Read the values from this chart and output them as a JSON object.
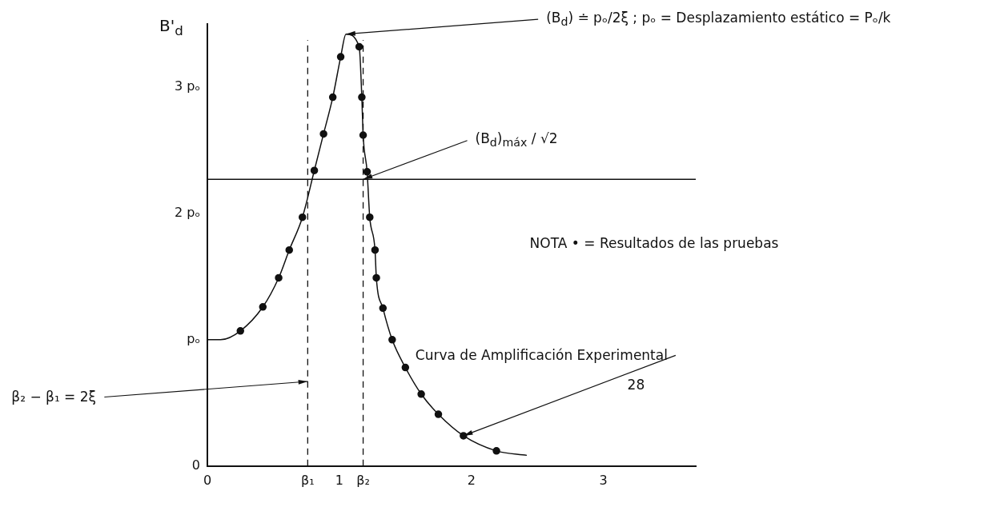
{
  "chart_data": {
    "type": "scatter",
    "ylabel": "B'$_{d}$",
    "xlim": [
      0,
      3.7
    ],
    "ylim": [
      0,
      3.5
    ],
    "xticks": [
      0,
      {
        "value": 0.76,
        "label": "β₁"
      },
      1,
      {
        "value": 1.18,
        "label": "β₂"
      },
      2,
      3
    ],
    "yticks": [
      0,
      {
        "value": 1,
        "label": "pₒ"
      },
      {
        "value": 2,
        "label": "2 pₒ"
      },
      {
        "value": 3,
        "label": "3 pₒ"
      }
    ],
    "grid": false,
    "legend": false,
    "series": [
      {
        "type": "line",
        "color": "#111111",
        "marker": "none",
        "x": [
          0,
          0.1,
          0.25,
          0.42,
          0.54,
          0.62,
          0.72,
          0.81,
          0.88,
          0.95,
          1.01,
          1.05,
          1.15,
          1.17,
          1.18,
          1.21,
          1.23,
          1.27,
          1.28,
          1.33,
          1.4,
          1.5,
          1.62,
          1.75,
          1.94,
          2.19,
          2.42
        ],
        "values": [
          1,
          1,
          1.07,
          1.26,
          1.49,
          1.71,
          1.97,
          2.34,
          2.63,
          2.92,
          3.24,
          3.42,
          3.32,
          2.92,
          2.62,
          2.33,
          1.97,
          1.71,
          1.49,
          1.25,
          1,
          0.78,
          0.57,
          0.41,
          0.24,
          0.12,
          0.085
        ]
      },
      {
        "type": "scatter",
        "color": "#111111",
        "marker": "circle",
        "x": [
          0.25,
          0.42,
          0.54,
          0.62,
          0.72,
          0.81,
          0.88,
          0.95,
          1.01,
          1.15,
          1.17,
          1.18,
          1.21,
          1.23,
          1.27,
          1.28,
          1.33,
          1.4,
          1.5,
          1.62,
          1.75,
          1.94,
          2.19
        ],
        "values": [
          1.07,
          1.26,
          1.49,
          1.71,
          1.97,
          2.34,
          2.63,
          2.92,
          3.24,
          3.32,
          2.92,
          2.62,
          2.33,
          1.97,
          1.71,
          1.49,
          1.25,
          1,
          0.78,
          0.57,
          0.41,
          0.24,
          0.12
        ]
      }
    ],
    "ref_lines": [
      {
        "axis": "x",
        "value": 0.76,
        "line_style": "dashed"
      },
      {
        "axis": "x",
        "value": 1.18,
        "line_style": "dashed"
      },
      {
        "axis": "y",
        "value": 2.27,
        "line_style": "solid"
      }
    ],
    "annotations": [
      {
        "text": "(B$_{d}$) ≐ pₒ/2ξ ; pₒ = Desplazamiento estático = Pₒ/k",
        "x": 1.05,
        "y": 3.42
      },
      {
        "text": "(B$_{d}$)$_{máx}$ / √2",
        "x": 1.18,
        "y": 2.27
      },
      {
        "text": "Curva de Amplificación Experimental",
        "x": 1.94,
        "y": 0.24
      },
      {
        "text": "β₂ − β₁ = 2ξ",
        "x": 0.76,
        "y": 0.67
      },
      "NOTA • = Resultados de las pruebas",
      "28"
    ]
  }
}
